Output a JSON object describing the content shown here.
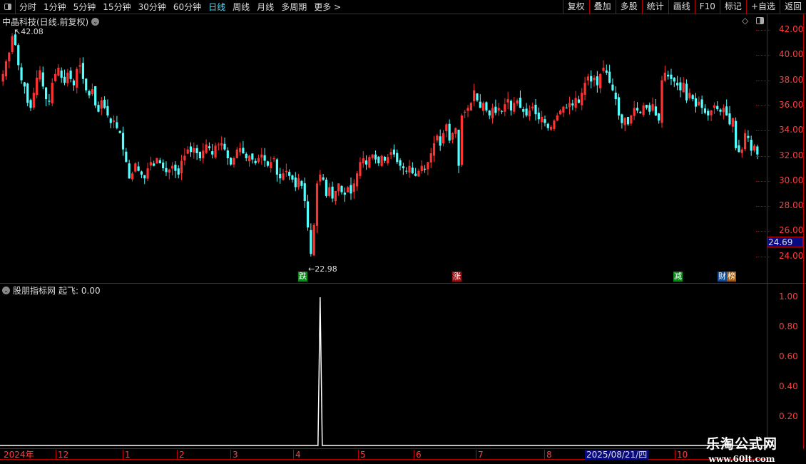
{
  "toolbar": {
    "periods": [
      "分时",
      "1分钟",
      "5分钟",
      "15分钟",
      "30分钟",
      "60分钟",
      "日线",
      "周线",
      "月线",
      "多周期",
      "更多 >"
    ],
    "active_period": "日线",
    "right_buttons": [
      "复权",
      "叠加",
      "多股",
      "统计",
      "画线",
      "F10",
      "标记",
      "+自选",
      "返回"
    ]
  },
  "main": {
    "title": "中晶科技(日线.前复权)",
    "high_label": "42.08",
    "low_label": "22.98",
    "current_price": "24.69",
    "price_ticks": [
      "42.00",
      "40.00",
      "38.00",
      "36.00",
      "34.00",
      "32.00",
      "30.00",
      "28.00",
      "26.00",
      "24.00"
    ],
    "markers": [
      {
        "text": "跌",
        "color": "#0a8a1a"
      },
      {
        "text": "涨",
        "color": "#a01010"
      },
      {
        "text": "减",
        "color": "#0a8a1a"
      },
      {
        "text": "财",
        "color": "#104a90"
      },
      {
        "text": "榜",
        "color": "#a05a10"
      }
    ]
  },
  "indicator": {
    "name": "股朋指标网",
    "label": "起飞: 0.00",
    "ticks": [
      "1.00",
      "0.80",
      "0.60",
      "0.40",
      "0.20"
    ]
  },
  "time_axis": {
    "labels": [
      "2024年",
      "12",
      "1",
      "2",
      "3",
      "4",
      "5",
      "6",
      "7",
      "8",
      "10"
    ],
    "selected_date": "2025/08/21/四"
  },
  "watermark": {
    "name": "乐淘公式网",
    "url": "www.60lt.com"
  },
  "colors": {
    "up": "#ff3232",
    "down": "#54ffff",
    "axis": "#c00000"
  },
  "chart_data": {
    "type": "candlestick",
    "ylim": [
      22,
      43
    ],
    "closes": [
      38.5,
      39.5,
      40.2,
      41.5,
      40.8,
      39.2,
      38,
      37.5,
      36.2,
      35.8,
      37,
      38.2,
      38.8,
      37.5,
      36.5,
      36.3,
      37.8,
      38.5,
      39,
      38.2,
      37.8,
      38.6,
      38.1,
      37.6,
      38.9,
      39.2,
      38.1,
      37.2,
      36.8,
      37.3,
      36,
      35.5,
      36.4,
      35.8,
      35.2,
      34.6,
      34.8,
      34.2,
      33.8,
      32.5,
      31.5,
      30.2,
      30.6,
      31.4,
      30.8,
      30.5,
      30.2,
      31,
      31.5,
      31.2,
      31.8,
      31.4,
      31,
      30.7,
      30.9,
      31.2,
      30.8,
      30.5,
      31.6,
      32,
      32.5,
      32.3,
      32.6,
      32.2,
      31.8,
      32.4,
      32.9,
      32.6,
      32.1,
      32.8,
      32.9,
      33,
      32.5,
      31.8,
      31.3,
      31.8,
      32.5,
      32.6,
      32.2,
      31.8,
      32,
      31.7,
      31.4,
      31.8,
      32.1,
      31.6,
      31.2,
      31.5,
      31.8,
      30.5,
      30.2,
      30.6,
      30.8,
      30.4,
      30.1,
      29.5,
      30.2,
      29.6,
      28.4,
      26.3,
      24.2,
      26.5,
      29.8,
      30.5,
      30.1,
      28.8,
      29.5,
      28.6,
      29.2,
      29.8,
      29.1,
      28.9,
      29.5,
      29,
      29.8,
      30.6,
      31.5,
      31.8,
      31.3,
      31.9,
      32.1,
      31.7,
      31.4,
      32,
      31.6,
      31.9,
      32.3,
      32.1,
      31.5,
      31.2,
      31,
      30.8,
      31.2,
      30.6,
      30.4,
      30.8,
      31.2,
      30.9,
      31.5,
      32.2,
      33,
      33.6,
      32.8,
      33.8,
      34.5,
      33.2,
      33.8,
      34.2,
      31.2,
      35.2,
      35.5,
      35.8,
      36.2,
      37.2,
      36.4,
      35.8,
      36.2,
      35.6,
      35.2,
      35.8,
      35.4,
      35.8,
      35.5,
      36.1,
      36.5,
      35.6,
      36.2,
      36.4,
      35.8,
      35.5,
      35.2,
      35.6,
      35.9,
      35.3,
      34.9,
      35.1,
      34.6,
      34.2,
      34.3,
      34.8,
      35.2,
      35.6,
      35.9,
      35.8,
      36.2,
      36,
      36.6,
      36.2,
      37,
      37.8,
      38.3,
      37.9,
      38.2,
      37.6,
      38.5,
      39,
      38.6,
      37.8,
      37.2,
      36.5,
      35.2,
      34.6,
      35,
      34.5,
      35.2,
      35.8,
      35.6,
      35.4,
      36,
      35.8,
      35.5,
      36.1,
      35.2,
      34.8,
      38,
      38.6,
      38.3,
      38.1,
      37.9,
      37.6,
      37.2,
      37.8,
      36.4,
      37,
      36.5,
      35.9,
      36.3,
      35.8,
      35.4,
      35.2,
      35.6,
      36,
      35.7,
      35.5,
      35.8,
      35.2,
      34.5,
      35,
      32.6,
      32.3,
      32.5,
      33.8,
      33.4,
      32.4,
      32.8,
      32.1
    ],
    "indicator_spike_bar": 103,
    "indicator_spike_value": 1.0
  }
}
